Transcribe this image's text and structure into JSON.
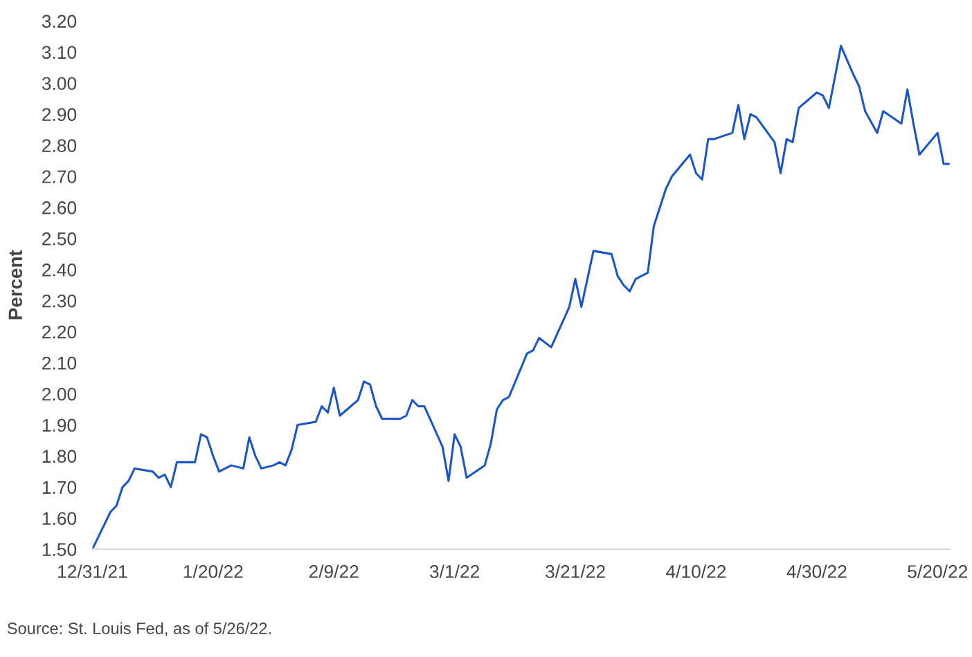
{
  "chart_data": {
    "type": "line",
    "ylabel": "Percent",
    "annotations": [
      "Source: St. Louis Fed, as of 5/26/22."
    ],
    "x": [
      "2021-12-31",
      "2022-01-03",
      "2022-01-04",
      "2022-01-05",
      "2022-01-06",
      "2022-01-07",
      "2022-01-10",
      "2022-01-11",
      "2022-01-12",
      "2022-01-13",
      "2022-01-14",
      "2022-01-17",
      "2022-01-18",
      "2022-01-19",
      "2022-01-20",
      "2022-01-21",
      "2022-01-23",
      "2022-01-25",
      "2022-01-26",
      "2022-01-27",
      "2022-01-28",
      "2022-01-30",
      "2022-01-31",
      "2022-02-01",
      "2022-02-02",
      "2022-02-03",
      "2022-02-06",
      "2022-02-07",
      "2022-02-08",
      "2022-02-09",
      "2022-02-10",
      "2022-02-13",
      "2022-02-14",
      "2022-02-15",
      "2022-02-16",
      "2022-02-17",
      "2022-02-20",
      "2022-02-21",
      "2022-02-22",
      "2022-02-23",
      "2022-02-24",
      "2022-02-27",
      "2022-02-28",
      "2022-03-01",
      "2022-03-02",
      "2022-03-03",
      "2022-03-06",
      "2022-03-07",
      "2022-03-08",
      "2022-03-09",
      "2022-03-10",
      "2022-03-13",
      "2022-03-14",
      "2022-03-15",
      "2022-03-17",
      "2022-03-20",
      "2022-03-21",
      "2022-03-22",
      "2022-03-23",
      "2022-03-24",
      "2022-03-27",
      "2022-03-28",
      "2022-03-29",
      "2022-03-30",
      "2022-03-31",
      "2022-04-02",
      "2022-04-03",
      "2022-04-05",
      "2022-04-06",
      "2022-04-09",
      "2022-04-10",
      "2022-04-11",
      "2022-04-12",
      "2022-04-13",
      "2022-04-16",
      "2022-04-17",
      "2022-04-18",
      "2022-04-19",
      "2022-04-20",
      "2022-04-23",
      "2022-04-24",
      "2022-04-25",
      "2022-04-26",
      "2022-04-27",
      "2022-04-30",
      "2022-05-01",
      "2022-05-02",
      "2022-05-04",
      "2022-05-06",
      "2022-05-07",
      "2022-05-08",
      "2022-05-10",
      "2022-05-11",
      "2022-05-14",
      "2022-05-15",
      "2022-05-16",
      "2022-05-17",
      "2022-05-20",
      "2022-05-21",
      "2022-05-22"
    ],
    "series": [
      {
        "color": "#1a56c8",
        "values": [
          1.5,
          1.62,
          1.64,
          1.7,
          1.72,
          1.76,
          1.75,
          1.73,
          1.74,
          1.7,
          1.78,
          1.78,
          1.87,
          1.86,
          1.8,
          1.75,
          1.77,
          1.76,
          1.86,
          1.8,
          1.76,
          1.77,
          1.78,
          1.77,
          1.82,
          1.9,
          1.91,
          1.96,
          1.94,
          2.02,
          1.93,
          1.98,
          2.04,
          2.03,
          1.96,
          1.92,
          1.92,
          1.93,
          1.98,
          1.96,
          1.96,
          1.83,
          1.72,
          1.87,
          1.83,
          1.73,
          1.77,
          1.84,
          1.95,
          1.98,
          1.99,
          2.13,
          2.14,
          2.18,
          2.15,
          2.28,
          2.37,
          2.28,
          2.37,
          2.46,
          2.45,
          2.38,
          2.35,
          2.33,
          2.37,
          2.39,
          2.54,
          2.66,
          2.7,
          2.77,
          2.71,
          2.69,
          2.82,
          2.82,
          2.84,
          2.93,
          2.82,
          2.9,
          2.89,
          2.81,
          2.71,
          2.82,
          2.81,
          2.92,
          2.97,
          2.96,
          2.92,
          3.12,
          3.03,
          2.99,
          2.91,
          2.84,
          2.91,
          2.87,
          2.98,
          2.87,
          2.77,
          2.84,
          2.74,
          2.74
        ]
      }
    ],
    "xticks": [
      {
        "value": "2021-12-31",
        "label": "12/31/21"
      },
      {
        "value": "2022-01-20",
        "label": "1/20/22"
      },
      {
        "value": "2022-02-09",
        "label": "2/9/22"
      },
      {
        "value": "2022-03-01",
        "label": "3/1/22"
      },
      {
        "value": "2022-03-21",
        "label": "3/21/22"
      },
      {
        "value": "2022-04-10",
        "label": "4/10/22"
      },
      {
        "value": "2022-04-30",
        "label": "4/30/22"
      },
      {
        "value": "2022-05-20",
        "label": "5/20/22"
      }
    ],
    "xlim": [
      "2021-12-31",
      "2022-05-22"
    ],
    "ylim": [
      1.5,
      3.2
    ],
    "yticks": [
      {
        "value": 1.5,
        "label": "1.50"
      },
      {
        "value": 1.6,
        "label": "1.60"
      },
      {
        "value": 1.7,
        "label": "1.70"
      },
      {
        "value": 1.8,
        "label": "1.80"
      },
      {
        "value": 1.9,
        "label": "1.90"
      },
      {
        "value": 2.0,
        "label": "2.00"
      },
      {
        "value": 2.1,
        "label": "2.10"
      },
      {
        "value": 2.2,
        "label": "2.20"
      },
      {
        "value": 2.3,
        "label": "2.30"
      },
      {
        "value": 2.4,
        "label": "2.40"
      },
      {
        "value": 2.5,
        "label": "2.50"
      },
      {
        "value": 2.6,
        "label": "2.60"
      },
      {
        "value": 2.7,
        "label": "2.70"
      },
      {
        "value": 2.8,
        "label": "2.80"
      },
      {
        "value": 2.9,
        "label": "2.90"
      },
      {
        "value": 3.0,
        "label": "3.00"
      },
      {
        "value": 3.1,
        "label": "3.10"
      },
      {
        "value": 3.2,
        "label": "3.20"
      }
    ],
    "grid": false,
    "marker": "none",
    "line_style": "solid"
  }
}
